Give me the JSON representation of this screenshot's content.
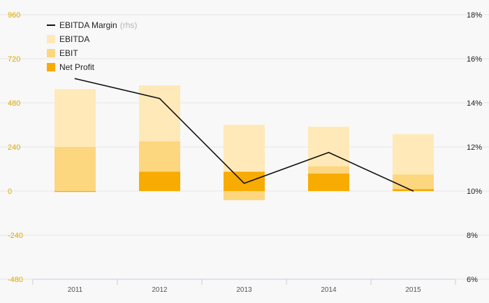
{
  "chart_data": {
    "type": "bar",
    "categories": [
      "2011",
      "2012",
      "2013",
      "2014",
      "2015"
    ],
    "series": [
      {
        "name": "EBITDA",
        "kind": "bar",
        "axis": "left",
        "values": [
          555,
          575,
          360,
          350,
          310
        ],
        "color": "#ffe9b8"
      },
      {
        "name": "EBIT",
        "kind": "bar",
        "axis": "left",
        "values": [
          240,
          270,
          -50,
          135,
          90
        ],
        "color": "#fdd680"
      },
      {
        "name": "Net Profit",
        "kind": "bar",
        "axis": "left",
        "values": [
          -5,
          105,
          105,
          95,
          10
        ],
        "color": "#f8ab00"
      },
      {
        "name": "EBITDA Margin",
        "kind": "line",
        "axis": "right",
        "values": [
          15.1,
          14.2,
          10.35,
          11.75,
          10.0
        ],
        "color": "#111111"
      }
    ],
    "legend": [
      {
        "label": "EBITDA Margin",
        "suffix": "(rhs)",
        "marker": "line",
        "color": "#111111"
      },
      {
        "label": "EBITDA",
        "marker": "square",
        "color": "#ffe9b8"
      },
      {
        "label": "EBIT",
        "marker": "square",
        "color": "#fdd680"
      },
      {
        "label": "Net Profit",
        "marker": "square",
        "color": "#f8ab00"
      }
    ],
    "legend_position": "top-left",
    "y_left": {
      "min": -480,
      "max": 960,
      "ticks": [
        "960",
        "720",
        "480",
        "240",
        "0",
        "-240",
        "-480"
      ],
      "color": "#e0a800"
    },
    "y_right": {
      "min": 6,
      "max": 18,
      "ticks": [
        "18%",
        "16%",
        "14%",
        "12%",
        "10%",
        "8%",
        "6%"
      ],
      "color": "#222222"
    },
    "grid": true,
    "title": "",
    "xlabel": "",
    "ylabel": ""
  }
}
